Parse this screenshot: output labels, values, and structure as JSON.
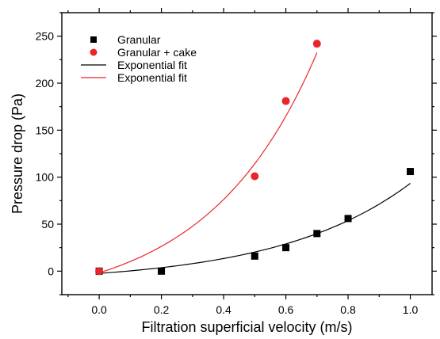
{
  "chart_data": {
    "type": "scatter",
    "xlabel": "Filtration superficial velocity (m/s)",
    "ylabel": "Pressure drop (Pa)",
    "xlim": [
      -0.12,
      1.07
    ],
    "ylim": [
      -25,
      275
    ],
    "xticks": [
      0.0,
      0.2,
      0.4,
      0.6,
      0.8,
      1.0
    ],
    "xtick_labels": [
      "0.0",
      "0.2",
      "0.4",
      "0.6",
      "0.8",
      "1.0"
    ],
    "yticks": [
      0,
      50,
      100,
      150,
      200,
      250
    ],
    "ytick_labels": [
      "0",
      "50",
      "100",
      "150",
      "200",
      "250"
    ],
    "grid": false,
    "legend_position": "top-left",
    "series": [
      {
        "name": "Granular",
        "kind": "points",
        "marker": "square",
        "color": "#000000",
        "x": [
          0.0,
          0.2,
          0.5,
          0.6,
          0.7,
          0.8,
          1.0
        ],
        "y": [
          0,
          0,
          16,
          25,
          40,
          56,
          106
        ]
      },
      {
        "name": "Granular + cake",
        "kind": "points",
        "marker": "circle",
        "color": "#e8262a",
        "x": [
          0.0,
          0.5,
          0.6,
          0.7
        ],
        "y": [
          0,
          101,
          181,
          242
        ]
      },
      {
        "name": "Exponential fit",
        "kind": "curve",
        "color": "#000000",
        "fit": {
          "a": 10.21,
          "b": 2.34,
          "c": -12.6
        },
        "x_range": [
          0.0,
          1.0
        ]
      },
      {
        "name": "Exponential fit",
        "kind": "curve",
        "color": "#e8262a",
        "fit": {
          "a": 36.3,
          "b": 2.869,
          "c": -38.1
        },
        "x_range": [
          0.0,
          0.7
        ]
      }
    ]
  }
}
